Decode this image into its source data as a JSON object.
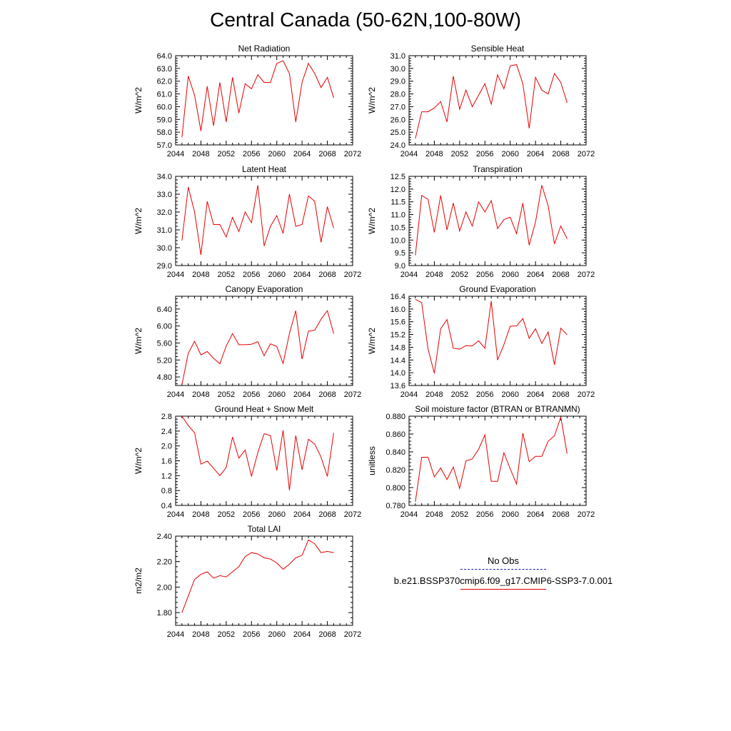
{
  "title": "Central Canada (50-62N,100-80W)",
  "legend": {
    "obs_label": "No Obs",
    "model_label": "b.e21.BSSP370cmip6.f09_g17.CMIP6-SSP3-7.0.001",
    "obs_color": "#1c1cb4",
    "model_color": "#e60000"
  },
  "chart_data": [
    {
      "id": "net-radiation",
      "type": "line",
      "title": "Net Radiation",
      "xlabel": "",
      "ylabel": "W/m^2",
      "xlim": [
        2044,
        2072
      ],
      "xticks": [
        2044,
        2048,
        2052,
        2056,
        2060,
        2064,
        2068,
        2072
      ],
      "ylim": [
        57.0,
        64.0
      ],
      "yticks": [
        57.0,
        58.0,
        59.0,
        60.0,
        61.0,
        62.0,
        63.0,
        64.0
      ],
      "ydecimals": 1,
      "x": [
        2045,
        2046,
        2047,
        2048,
        2049,
        2050,
        2051,
        2052,
        2053,
        2054,
        2055,
        2056,
        2057,
        2058,
        2059,
        2060,
        2061,
        2062,
        2063,
        2064,
        2065,
        2066,
        2067,
        2068,
        2069
      ],
      "series": [
        {
          "color": "#e60000",
          "values": [
            57.6,
            62.4,
            60.9,
            58.1,
            61.6,
            58.5,
            61.9,
            58.8,
            62.3,
            59.5,
            61.8,
            61.4,
            62.5,
            61.9,
            61.9,
            63.4,
            63.6,
            62.6,
            58.8,
            61.9,
            63.4,
            62.6,
            61.5,
            62.3,
            60.7
          ]
        }
      ]
    },
    {
      "id": "sensible-heat",
      "type": "line",
      "title": "Sensible Heat",
      "xlabel": "",
      "ylabel": "W/m^2",
      "xlim": [
        2044,
        2072
      ],
      "xticks": [
        2044,
        2048,
        2052,
        2056,
        2060,
        2064,
        2068,
        2072
      ],
      "ylim": [
        24.0,
        31.0
      ],
      "yticks": [
        24.0,
        25.0,
        26.0,
        27.0,
        28.0,
        29.0,
        30.0,
        31.0
      ],
      "ydecimals": 1,
      "x": [
        2045,
        2046,
        2047,
        2048,
        2049,
        2050,
        2051,
        2052,
        2053,
        2054,
        2055,
        2056,
        2057,
        2058,
        2059,
        2060,
        2061,
        2062,
        2063,
        2064,
        2065,
        2066,
        2067,
        2068,
        2069
      ],
      "series": [
        {
          "color": "#e60000",
          "values": [
            24.5,
            26.6,
            26.6,
            26.9,
            27.4,
            25.8,
            29.4,
            26.8,
            28.3,
            27.0,
            27.9,
            28.8,
            27.2,
            29.5,
            28.4,
            30.2,
            30.3,
            28.8,
            25.3,
            29.3,
            28.3,
            28.0,
            29.6,
            28.9,
            27.3
          ]
        }
      ]
    },
    {
      "id": "latent-heat",
      "type": "line",
      "title": "Latent Heat",
      "xlabel": "",
      "ylabel": "W/m^2",
      "xlim": [
        2044,
        2072
      ],
      "xticks": [
        2044,
        2048,
        2052,
        2056,
        2060,
        2064,
        2068,
        2072
      ],
      "ylim": [
        29.0,
        34.0
      ],
      "yticks": [
        29.0,
        30.0,
        31.0,
        32.0,
        33.0,
        34.0
      ],
      "ydecimals": 1,
      "x": [
        2045,
        2046,
        2047,
        2048,
        2049,
        2050,
        2051,
        2052,
        2053,
        2054,
        2055,
        2056,
        2057,
        2058,
        2059,
        2060,
        2061,
        2062,
        2063,
        2064,
        2065,
        2066,
        2067,
        2068,
        2069
      ],
      "series": [
        {
          "color": "#e60000",
          "values": [
            30.4,
            33.4,
            32.0,
            29.6,
            32.6,
            31.3,
            31.3,
            30.6,
            31.7,
            30.9,
            32.0,
            31.4,
            33.5,
            30.1,
            31.2,
            31.8,
            30.8,
            33.0,
            31.2,
            31.3,
            32.9,
            32.6,
            30.3,
            32.3,
            31.1
          ]
        }
      ]
    },
    {
      "id": "transpiration",
      "type": "line",
      "title": "Transpiration",
      "xlabel": "",
      "ylabel": "W/m^2",
      "xlim": [
        2044,
        2072
      ],
      "xticks": [
        2044,
        2048,
        2052,
        2056,
        2060,
        2064,
        2068,
        2072
      ],
      "ylim": [
        9.0,
        12.5
      ],
      "yticks": [
        9.0,
        9.5,
        10.0,
        10.5,
        11.0,
        11.5,
        12.0,
        12.5
      ],
      "ydecimals": 1,
      "x": [
        2045,
        2046,
        2047,
        2048,
        2049,
        2050,
        2051,
        2052,
        2053,
        2054,
        2055,
        2056,
        2057,
        2058,
        2059,
        2060,
        2061,
        2062,
        2063,
        2064,
        2065,
        2066,
        2067,
        2068,
        2069
      ],
      "series": [
        {
          "color": "#e60000",
          "values": [
            9.4,
            11.75,
            11.6,
            10.3,
            11.75,
            10.4,
            11.45,
            10.35,
            11.1,
            10.55,
            11.5,
            11.1,
            11.55,
            10.45,
            10.8,
            10.9,
            10.25,
            11.45,
            9.8,
            10.7,
            12.15,
            11.35,
            9.85,
            10.55,
            10.05
          ]
        }
      ]
    },
    {
      "id": "canopy-evaporation",
      "type": "line",
      "title": "Canopy Evaporation",
      "xlabel": "",
      "ylabel": "W/m^2",
      "xlim": [
        2044,
        2072
      ],
      "xticks": [
        2044,
        2048,
        2052,
        2056,
        2060,
        2064,
        2068,
        2072
      ],
      "ylim": [
        4.6,
        6.7
      ],
      "yticks": [
        4.8,
        5.2,
        5.6,
        6.0,
        6.4
      ],
      "ydecimals": 2,
      "x": [
        2045,
        2046,
        2047,
        2048,
        2049,
        2050,
        2051,
        2052,
        2053,
        2054,
        2055,
        2056,
        2057,
        2058,
        2059,
        2060,
        2061,
        2062,
        2063,
        2064,
        2065,
        2066,
        2067,
        2068,
        2069
      ],
      "series": [
        {
          "color": "#e60000",
          "values": [
            4.62,
            5.36,
            5.64,
            5.32,
            5.4,
            5.24,
            5.11,
            5.53,
            5.82,
            5.56,
            5.56,
            5.57,
            5.63,
            5.3,
            5.58,
            5.52,
            5.12,
            5.82,
            6.36,
            5.22,
            5.88,
            5.9,
            6.16,
            6.36,
            5.82
          ]
        }
      ]
    },
    {
      "id": "ground-evaporation",
      "type": "line",
      "title": "Ground Evaporation",
      "xlabel": "",
      "ylabel": "W/m^2",
      "xlim": [
        2044,
        2072
      ],
      "xticks": [
        2044,
        2048,
        2052,
        2056,
        2060,
        2064,
        2068,
        2072
      ],
      "ylim": [
        13.6,
        16.4
      ],
      "yticks": [
        13.6,
        14.0,
        14.4,
        14.8,
        15.2,
        15.6,
        16.0,
        16.4
      ],
      "ydecimals": 1,
      "x": [
        2045,
        2046,
        2047,
        2048,
        2049,
        2050,
        2051,
        2052,
        2053,
        2054,
        2055,
        2056,
        2057,
        2058,
        2059,
        2060,
        2061,
        2062,
        2063,
        2064,
        2065,
        2066,
        2067,
        2068,
        2069
      ],
      "series": [
        {
          "color": "#e60000",
          "values": [
            16.3,
            16.2,
            14.75,
            13.98,
            15.38,
            15.67,
            14.77,
            14.74,
            14.85,
            14.84,
            15.0,
            14.77,
            16.25,
            14.4,
            14.88,
            15.46,
            15.47,
            15.7,
            15.08,
            15.38,
            14.92,
            15.28,
            14.25,
            15.4,
            15.19
          ]
        }
      ]
    },
    {
      "id": "ground-heat-snow-melt",
      "type": "line",
      "title": "Ground Heat + Snow Melt",
      "xlabel": "",
      "ylabel": "W/m^2",
      "xlim": [
        2044,
        2072
      ],
      "xticks": [
        2044,
        2048,
        2052,
        2056,
        2060,
        2064,
        2068,
        2072
      ],
      "ylim": [
        0.4,
        2.8
      ],
      "yticks": [
        0.4,
        0.8,
        1.2,
        1.6,
        2.0,
        2.4,
        2.8
      ],
      "ydecimals": 1,
      "x": [
        2045,
        2046,
        2047,
        2048,
        2049,
        2050,
        2051,
        2052,
        2053,
        2054,
        2055,
        2056,
        2057,
        2058,
        2059,
        2060,
        2061,
        2062,
        2063,
        2064,
        2065,
        2066,
        2067,
        2068,
        2069
      ],
      "series": [
        {
          "color": "#e60000",
          "values": [
            2.8,
            2.55,
            2.35,
            1.51,
            1.59,
            1.4,
            1.2,
            1.42,
            2.24,
            1.67,
            1.89,
            1.18,
            1.82,
            2.33,
            2.28,
            1.34,
            2.42,
            0.81,
            2.28,
            1.36,
            2.18,
            2.05,
            1.7,
            1.18,
            2.35
          ]
        }
      ]
    },
    {
      "id": "soil-moisture-factor",
      "type": "line",
      "title": "Soil moisture factor (BTRAN or BTRANMN)",
      "xlabel": "",
      "ylabel": "unitless",
      "xlim": [
        2044,
        2072
      ],
      "xticks": [
        2044,
        2048,
        2052,
        2056,
        2060,
        2064,
        2068,
        2072
      ],
      "ylim": [
        0.78,
        0.88
      ],
      "yticks": [
        0.78,
        0.8,
        0.82,
        0.84,
        0.86,
        0.88
      ],
      "ydecimals": 3,
      "x": [
        2045,
        2046,
        2047,
        2048,
        2049,
        2050,
        2051,
        2052,
        2053,
        2054,
        2055,
        2056,
        2057,
        2058,
        2059,
        2060,
        2061,
        2062,
        2063,
        2064,
        2065,
        2066,
        2067,
        2068,
        2069
      ],
      "series": [
        {
          "color": "#e60000",
          "values": [
            0.784,
            0.834,
            0.834,
            0.812,
            0.822,
            0.809,
            0.823,
            0.799,
            0.83,
            0.832,
            0.843,
            0.859,
            0.807,
            0.807,
            0.839,
            0.821,
            0.804,
            0.861,
            0.829,
            0.835,
            0.835,
            0.852,
            0.858,
            0.879,
            0.838
          ]
        }
      ]
    },
    {
      "id": "total-lai",
      "type": "line",
      "title": "Total LAI",
      "xlabel": "",
      "ylabel": "m2/m2",
      "xlim": [
        2044,
        2072
      ],
      "xticks": [
        2044,
        2048,
        2052,
        2056,
        2060,
        2064,
        2068,
        2072
      ],
      "ylim": [
        1.7,
        2.4
      ],
      "yticks": [
        1.8,
        2.0,
        2.2,
        2.4
      ],
      "ydecimals": 2,
      "x": [
        2045,
        2046,
        2047,
        2048,
        2049,
        2050,
        2051,
        2052,
        2053,
        2054,
        2055,
        2056,
        2057,
        2058,
        2059,
        2060,
        2061,
        2062,
        2063,
        2064,
        2065,
        2066,
        2067,
        2068,
        2069
      ],
      "series": [
        {
          "color": "#e60000",
          "values": [
            1.8,
            1.93,
            2.06,
            2.1,
            2.12,
            2.07,
            2.09,
            2.08,
            2.12,
            2.16,
            2.24,
            2.27,
            2.26,
            2.23,
            2.22,
            2.19,
            2.14,
            2.18,
            2.23,
            2.25,
            2.37,
            2.34,
            2.27,
            2.28,
            2.27
          ]
        }
      ]
    }
  ]
}
